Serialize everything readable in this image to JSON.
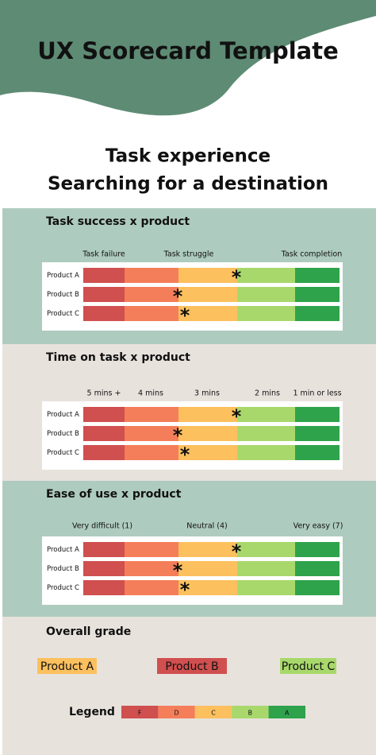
{
  "header": {
    "title": "UX Scorecard Template",
    "subtitle": [
      "Task experience",
      "Searching for a destination"
    ]
  },
  "sections": [
    {
      "heading": "Task success x product",
      "scale_labels": [
        "Task failure",
        "Task struggle",
        "Task completion"
      ],
      "rows": [
        "Product A",
        "Product B",
        "Product C"
      ]
    },
    {
      "heading": "Time on task x product",
      "scale_labels": [
        "5 mins +",
        "4 mins",
        "3 mins",
        "2 mins",
        "1 min or less"
      ],
      "rows": [
        "Product A",
        "Product B",
        "Product C"
      ]
    },
    {
      "heading": "Ease of use x product",
      "scale_labels": [
        "Very difficult (1)",
        "Neutral (4)",
        "Very easy (7)"
      ],
      "rows": [
        "Product A",
        "Product B",
        "Product C"
      ]
    }
  ],
  "overall": {
    "heading": "Overall grade",
    "grades": [
      "Product A",
      "Product B",
      "Product C"
    ]
  },
  "legend": {
    "label": "Legend",
    "grades": [
      "F",
      "D",
      "C",
      "B",
      "A"
    ]
  }
}
